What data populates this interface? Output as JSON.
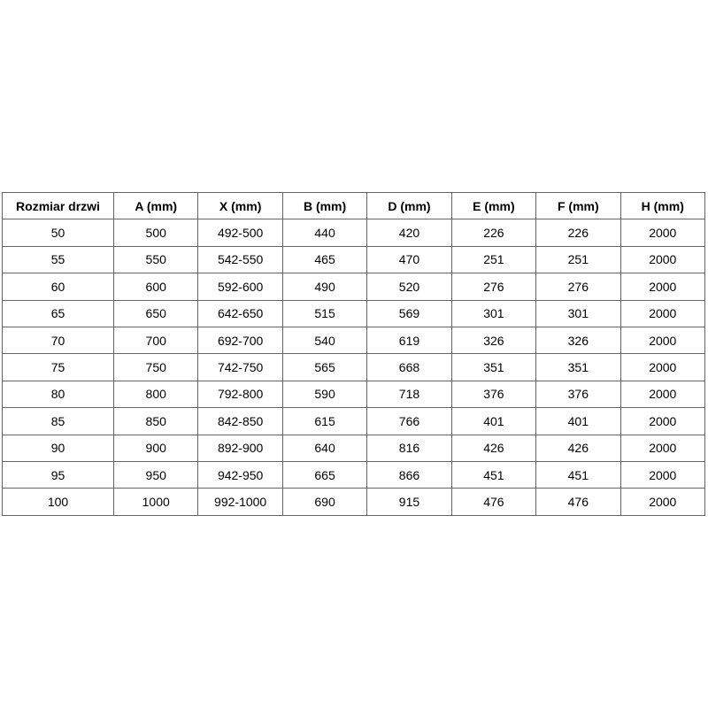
{
  "style": {
    "page_background": "#ffffff",
    "table_border_color": "#666666",
    "text_color": "#000000",
    "header_bold": true
  },
  "chart_data": {
    "type": "table",
    "title": "",
    "headers": [
      "Rozmiar drzwi",
      "A (mm)",
      "X (mm)",
      "B (mm)",
      "D (mm)",
      "E (mm)",
      "F (mm)",
      "H (mm)"
    ],
    "rows": [
      [
        "50",
        "500",
        "492-500",
        "440",
        "420",
        "226",
        "226",
        "2000"
      ],
      [
        "55",
        "550",
        "542-550",
        "465",
        "470",
        "251",
        "251",
        "2000"
      ],
      [
        "60",
        "600",
        "592-600",
        "490",
        "520",
        "276",
        "276",
        "2000"
      ],
      [
        "65",
        "650",
        "642-650",
        "515",
        "569",
        "301",
        "301",
        "2000"
      ],
      [
        "70",
        "700",
        "692-700",
        "540",
        "619",
        "326",
        "326",
        "2000"
      ],
      [
        "75",
        "750",
        "742-750",
        "565",
        "668",
        "351",
        "351",
        "2000"
      ],
      [
        "80",
        "800",
        "792-800",
        "590",
        "718",
        "376",
        "376",
        "2000"
      ],
      [
        "85",
        "850",
        "842-850",
        "615",
        "766",
        "401",
        "401",
        "2000"
      ],
      [
        "90",
        "900",
        "892-900",
        "640",
        "816",
        "426",
        "426",
        "2000"
      ],
      [
        "95",
        "950",
        "942-950",
        "665",
        "866",
        "451",
        "451",
        "2000"
      ],
      [
        "100",
        "1000",
        "992-1000",
        "690",
        "915",
        "476",
        "476",
        "2000"
      ]
    ]
  }
}
